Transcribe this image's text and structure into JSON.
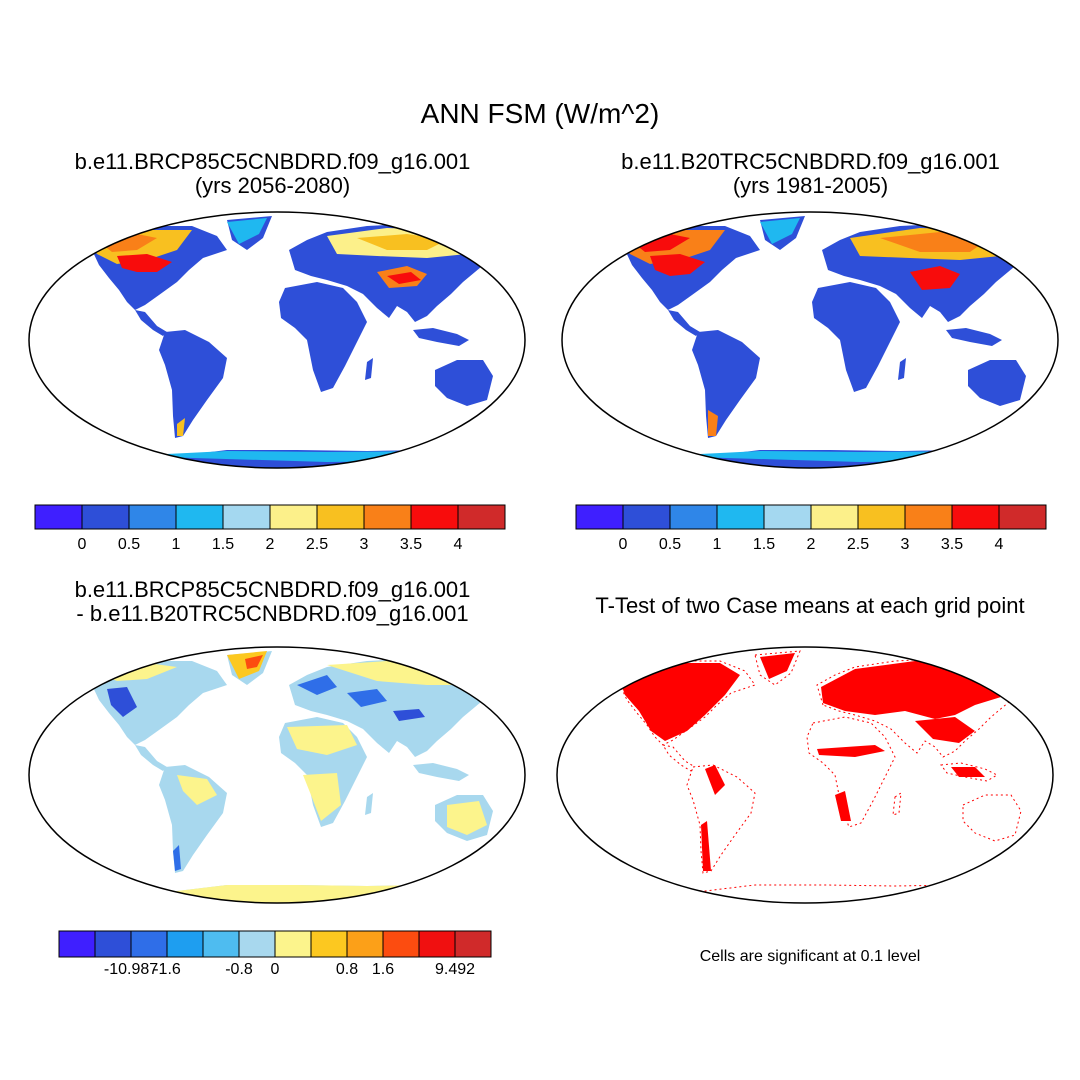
{
  "title": "ANN FSM (W/m^2)",
  "panels": [
    {
      "line1": "b.e11.BRCP85C5CNBDRD.f09_g16.001",
      "line2": "(yrs 2056-2080)"
    },
    {
      "line1": "b.e11.B20TRC5CNBDRD.f09_g16.001",
      "line2": "(yrs 1981-2005)"
    },
    {
      "line1": "b.e11.BRCP85C5CNBDRD.f09_g16.001",
      "line2": "- b.e11.B20TRC5CNBDRD.f09_g16.001"
    },
    {
      "line1": "T-Test of two Case means at each grid point",
      "line2": ""
    }
  ],
  "colorbars": {
    "absolute": {
      "colors": [
        "#3f1fff",
        "#2e4fd8",
        "#2f86e8",
        "#1fb8f0",
        "#a4d8f0",
        "#fcf08a",
        "#f8c020",
        "#f98018",
        "#f80c0c",
        "#d02a2a"
      ],
      "labels": [
        "0",
        "0.5",
        "1",
        "1.5",
        "2",
        "2.5",
        "3",
        "3.5",
        "4"
      ]
    },
    "difference": {
      "colors": [
        "#3f1fff",
        "#2e4fd8",
        "#2f6ee8",
        "#1e9ef0",
        "#4ebcf0",
        "#a8d8ee",
        "#fcf48c",
        "#fcc820",
        "#fca018",
        "#fc4c10",
        "#f01010",
        "#d02a2a"
      ],
      "labels": [
        "-10.987",
        "-1.6",
        "-0.8",
        "0",
        "0.8",
        "1.6",
        "9.492"
      ]
    }
  },
  "significance_color": "#ff0000",
  "note": "Cells are significant at 0.1 level"
}
